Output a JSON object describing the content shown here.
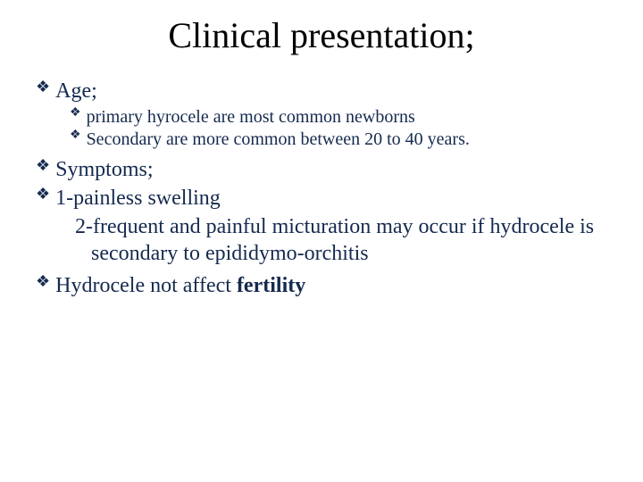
{
  "title": {
    "text": "Clinical presentation;",
    "fontsize": 40,
    "color": "#000000"
  },
  "bullet_marker": {
    "glyph": "❖",
    "color_l1": "#152a4f",
    "color_l2": "#152a4f"
  },
  "level1_style": {
    "fontsize": 24,
    "color": "#152a4f"
  },
  "level2_style": {
    "fontsize": 20,
    "color": "#152a4f"
  },
  "items": {
    "age": {
      "label": "Age;",
      "sub1": "primary hyrocele are most common newborns",
      "sub2": "Secondary are more common between 20 to 40 years."
    },
    "symptoms": {
      "label": "Symptoms;",
      "line1": "1-painless swelling",
      "line2a": "2-frequent and painful micturation may occur if hydrocele is",
      "line2b": "secondary to epididymo-orchitis"
    },
    "fertility": {
      "prefix": "Hydrocele not affect ",
      "bold": "fertility"
    }
  }
}
